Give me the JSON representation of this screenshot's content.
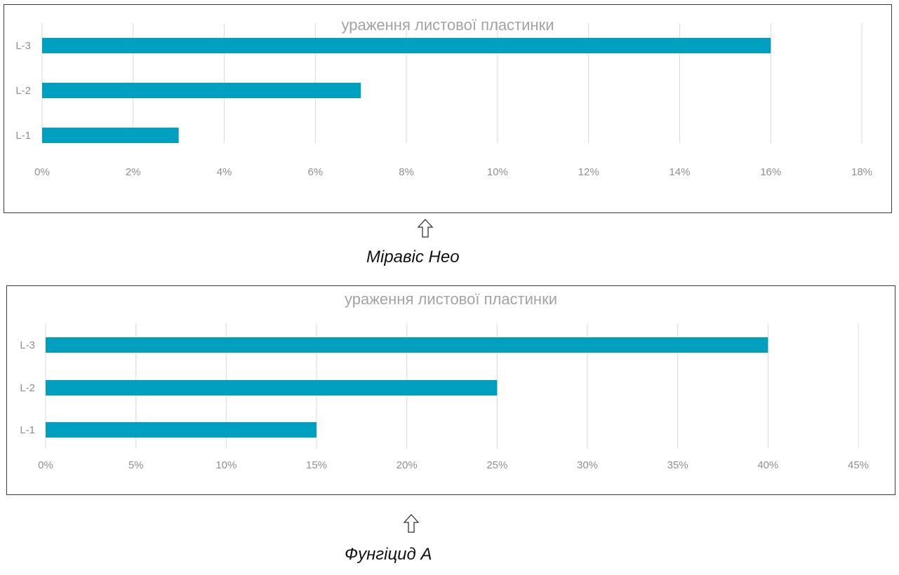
{
  "chart_data": [
    {
      "type": "bar",
      "orientation": "horizontal",
      "title": "ураження листової пластинки",
      "categories": [
        "L-1",
        "L-2",
        "L-3"
      ],
      "values": [
        3,
        7,
        16
      ],
      "xlim": [
        0,
        18
      ],
      "xticks": [
        "0%",
        "2%",
        "4%",
        "6%",
        "8%",
        "10%",
        "12%",
        "14%",
        "16%",
        "18%"
      ],
      "unit": "%",
      "grid": true,
      "legend": "none"
    },
    {
      "type": "bar",
      "orientation": "horizontal",
      "title": "ураження листової пластинки",
      "categories": [
        "L-1",
        "L-2",
        "L-3"
      ],
      "values": [
        15,
        25,
        40
      ],
      "xlim": [
        0,
        45
      ],
      "xticks": [
        "0%",
        "5%",
        "10%",
        "15%",
        "20%",
        "25%",
        "30%",
        "35%",
        "40%",
        "45%"
      ],
      "unit": "%",
      "grid": true,
      "legend": "none"
    }
  ],
  "captions": [
    "Міравіс Нео",
    "Фунгіцид А"
  ],
  "icons": [
    "up-arrow-icon",
    "up-arrow-icon"
  ],
  "colors": {
    "bar": "#009fc0",
    "grid": "#d9d9d9",
    "text": "#8f8f8f"
  }
}
